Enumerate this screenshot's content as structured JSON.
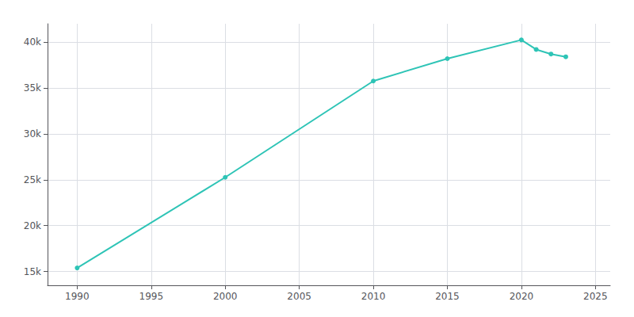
{
  "chart_data": {
    "type": "line",
    "x": [
      1990,
      2000,
      2010,
      2015,
      2020,
      2021,
      2022,
      2023
    ],
    "values": [
      15395,
      25267,
      35762,
      38200,
      40241,
      39200,
      38700,
      38400
    ],
    "color": "#2ec4b6",
    "marker": "circle",
    "xlim": [
      1988,
      2026
    ],
    "xticks": [
      1990,
      1995,
      2000,
      2005,
      2010,
      2015,
      2020,
      2025
    ],
    "ylim": [
      13500,
      42000
    ],
    "yticks": [
      {
        "value": 15000,
        "label": "15k"
      },
      {
        "value": 20000,
        "label": "20k"
      },
      {
        "value": 25000,
        "label": "25k"
      },
      {
        "value": 30000,
        "label": "30k"
      },
      {
        "value": 35000,
        "label": "35k"
      },
      {
        "value": 40000,
        "label": "40k"
      }
    ],
    "grid": true
  }
}
